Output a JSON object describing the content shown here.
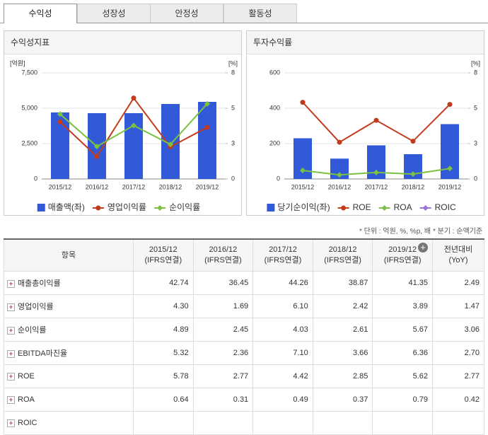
{
  "tabs": [
    "수익성",
    "성장성",
    "안정성",
    "활동성"
  ],
  "chart_data": [
    {
      "type": "bar",
      "title": "수익성지표",
      "y_label": "[억원]",
      "y2_label": "[%]",
      "categories": [
        "2015/12",
        "2016/12",
        "2017/12",
        "2018/12",
        "2019/12"
      ],
      "ylim": [
        0,
        7500
      ],
      "yticks": [
        0,
        {
          "value": 2500,
          "label": "2,500"
        },
        {
          "value": 5000,
          "label": "5,000"
        },
        {
          "value": 7500,
          "label": "7,500"
        }
      ],
      "y2lim": [
        0,
        8
      ],
      "y2ticks": [
        0,
        {
          "value": 2.67,
          "label": "3"
        },
        {
          "value": 5.33,
          "label": "5"
        },
        8
      ],
      "grid": true,
      "series": [
        {
          "name": "매출액(좌)",
          "type": "bar",
          "color": "#3159d8",
          "values": [
            4700,
            4650,
            4650,
            5300,
            5450
          ]
        },
        {
          "name": "영업이익률",
          "type": "line",
          "axis": "y2",
          "marker": "circle",
          "color": "#c33b1c",
          "values": [
            4.3,
            1.69,
            6.1,
            2.42,
            3.89
          ]
        },
        {
          "name": "순이익률",
          "type": "line",
          "axis": "y2",
          "marker": "diamond",
          "color": "#7cc242",
          "values": [
            4.89,
            2.45,
            4.03,
            2.61,
            5.67
          ]
        }
      ]
    },
    {
      "type": "bar",
      "title": "투자수익률",
      "y2_label": "[%]",
      "categories": [
        "2015/12",
        "2016/12",
        "2017/12",
        "2018/12",
        "2019/12"
      ],
      "ylim": [
        0,
        600
      ],
      "yticks": [
        0,
        200,
        400,
        600
      ],
      "y2lim": [
        0,
        8
      ],
      "y2ticks": [
        0,
        {
          "value": 2.67,
          "label": "3"
        },
        {
          "value": 5.33,
          "label": "5"
        },
        8
      ],
      "grid": true,
      "series": [
        {
          "name": "당기순이익(좌)",
          "type": "bar",
          "color": "#3159d8",
          "values": [
            230,
            115,
            190,
            140,
            310
          ]
        },
        {
          "name": "ROE",
          "type": "line",
          "axis": "y2",
          "marker": "circle",
          "color": "#c33b1c",
          "values": [
            5.78,
            2.77,
            4.42,
            2.85,
            5.62
          ]
        },
        {
          "name": "ROA",
          "type": "line",
          "axis": "y2",
          "marker": "diamond",
          "color": "#7cc242",
          "values": [
            0.64,
            0.31,
            0.49,
            0.37,
            0.79
          ]
        },
        {
          "name": "ROIC",
          "type": "line",
          "axis": "y2",
          "marker": "diamond",
          "color": "#9b72d8",
          "values": [
            null,
            null,
            null,
            null,
            null
          ]
        }
      ]
    }
  ],
  "notes": [
    "* 단위 : 억원, %, %p, 배",
    "* 분기 : 순액기준"
  ],
  "table": {
    "item_header": "항목",
    "columns": [
      {
        "label": "2015/12",
        "sub": "(IFRS연결)"
      },
      {
        "label": "2016/12",
        "sub": "(IFRS연결)"
      },
      {
        "label": "2017/12",
        "sub": "(IFRS연결)"
      },
      {
        "label": "2018/12",
        "sub": "(IFRS연결)"
      },
      {
        "label": "2019/12",
        "sub": "(IFRS연결)"
      },
      {
        "label": "전년대비",
        "sub": "(YoY)"
      }
    ],
    "rows": [
      {
        "label": "매출총이익률",
        "values": [
          "42.74",
          "36.45",
          "44.26",
          "38.87",
          "41.35",
          "2.49"
        ]
      },
      {
        "label": "영업이익률",
        "values": [
          "4.30",
          "1.69",
          "6.10",
          "2.42",
          "3.89",
          "1.47"
        ]
      },
      {
        "label": "순이익률",
        "values": [
          "4.89",
          "2.45",
          "4.03",
          "2.61",
          "5.67",
          "3.06"
        ]
      },
      {
        "label": "EBITDA마진율",
        "values": [
          "5.32",
          "2.36",
          "7.10",
          "3.66",
          "6.36",
          "2.70"
        ]
      },
      {
        "label": "ROE",
        "values": [
          "5.78",
          "2.77",
          "4.42",
          "2.85",
          "5.62",
          "2.77"
        ]
      },
      {
        "label": "ROA",
        "values": [
          "0.64",
          "0.31",
          "0.49",
          "0.37",
          "0.79",
          "0.42"
        ]
      },
      {
        "label": "ROIC",
        "values": [
          null,
          null,
          null,
          null,
          null,
          null
        ]
      }
    ]
  }
}
